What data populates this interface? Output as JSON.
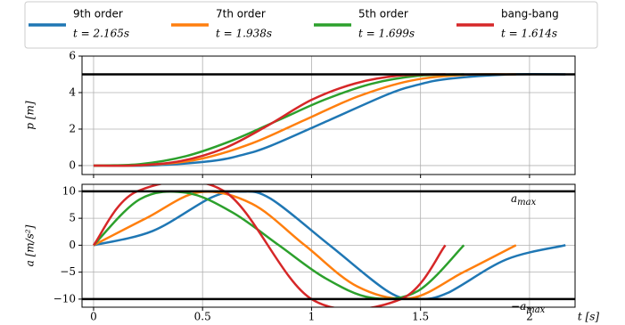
{
  "chart_data": [
    {
      "type": "line",
      "ylabel": "p [m]",
      "xlim": [
        -0.053,
        2.209
      ],
      "ylim": [
        -0.49,
        6
      ],
      "xticks": [
        0.0,
        0.5,
        1.0,
        1.5,
        2.0
      ],
      "show_xtick_labels": false,
      "yticks": [
        0,
        2,
        4,
        6
      ],
      "grid": true,
      "reference_lines": [
        5
      ],
      "reference_color": "#000000",
      "series": [
        {
          "name": "9th order",
          "duration_label": "t = 2.165s",
          "color": "#1f77b4",
          "x": [
            0,
            0.271,
            0.541,
            0.677,
            0.812,
            1.083,
            1.353,
            1.488,
            1.624,
            1.894,
            2.165
          ],
          "values": [
            0,
            0.012,
            0.25,
            0.57,
            1.08,
            2.5,
            3.92,
            4.43,
            4.75,
            4.99,
            5
          ]
        },
        {
          "name": "7th order",
          "duration_label": "t = 1.938s",
          "color": "#ff7f0e",
          "x": [
            0,
            0.242,
            0.485,
            0.727,
            0.969,
            1.211,
            1.454,
            1.696,
            1.938
          ],
          "values": [
            0,
            0.03,
            0.35,
            1.22,
            2.5,
            3.78,
            4.65,
            4.97,
            5
          ]
        },
        {
          "name": "5th order",
          "duration_label": "t = 1.699s",
          "color": "#2ca02c",
          "x": [
            0,
            0.212,
            0.425,
            0.637,
            0.85,
            1.062,
            1.274,
            1.487,
            1.699
          ],
          "values": [
            0,
            0.08,
            0.52,
            1.38,
            2.5,
            3.62,
            4.48,
            4.92,
            5
          ]
        },
        {
          "name": "bang-bang",
          "duration_label": "t = 1.614s",
          "color": "#d62728",
          "x": [
            0,
            0.2,
            0.4,
            0.6,
            0.8,
            1.0,
            1.2,
            1.4,
            1.614
          ],
          "values": [
            0,
            0.01,
            0.25,
            0.95,
            2.2,
            3.6,
            4.5,
            4.93,
            5
          ]
        }
      ]
    },
    {
      "type": "line",
      "ylabel": "a [m/s²]",
      "xlabel": "t [s]",
      "xlim": [
        -0.053,
        2.209
      ],
      "ylim": [
        -11.5,
        11.3
      ],
      "xticks": [
        0.0,
        0.5,
        1.0,
        1.5,
        2.0
      ],
      "show_xtick_labels": true,
      "yticks": [
        {
          "value": -10,
          "label": "−10"
        },
        {
          "value": -5,
          "label": "−5"
        },
        0,
        5,
        10
      ],
      "grid": true,
      "reference_lines": [
        10,
        -10
      ],
      "reference_color": "#000000",
      "annotations": [
        {
          "prefix": "",
          "symbol": "a",
          "subscript": "max"
        },
        {
          "prefix": "−",
          "symbol": "a",
          "subscript": "max"
        }
      ],
      "series": [
        {
          "color": "#1f77b4",
          "x": [
            0,
            0.271,
            0.541,
            0.677,
            0.812,
            1.083,
            1.353,
            1.488,
            1.624,
            1.894,
            2.165
          ],
          "values": [
            0,
            2.64,
            8.86,
            9.96,
            8.64,
            0,
            -8.64,
            -9.96,
            -8.86,
            -2.64,
            0
          ]
        },
        {
          "color": "#ff7f0e",
          "x": [
            0,
            0.242,
            0.485,
            0.727,
            0.969,
            1.211,
            1.454,
            1.696,
            1.938
          ],
          "values": [
            0,
            5.02,
            9.83,
            7.68,
            0,
            -7.68,
            -9.83,
            -5.02,
            0
          ]
        },
        {
          "color": "#2ca02c",
          "x": [
            0,
            0.212,
            0.425,
            0.637,
            0.85,
            1.062,
            1.274,
            1.487,
            1.699
          ],
          "values": [
            0,
            8.52,
            9.74,
            6.09,
            0,
            -6.09,
            -9.74,
            -8.52,
            0
          ]
        },
        {
          "color": "#d62728",
          "x": [
            0,
            0.2,
            0.6,
            1.0,
            1.41,
            1.614
          ],
          "values": [
            0,
            10,
            10,
            -10,
            -10,
            0
          ]
        }
      ]
    }
  ]
}
